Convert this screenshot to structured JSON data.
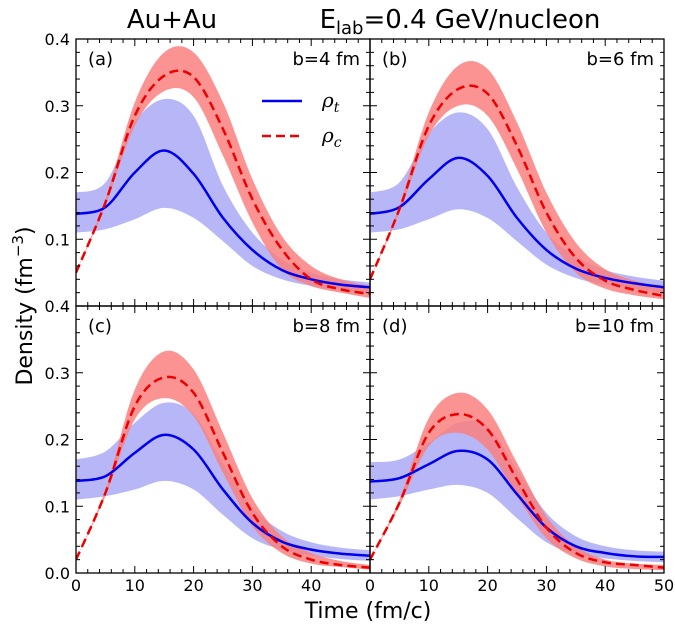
{
  "figure": {
    "title_left": "Au+Au",
    "title_right_prefix": "E",
    "title_right_sub": "lab",
    "title_right_suffix": "=0.4 GeV/nucleon",
    "xlabel": "Time (fm/c)",
    "ylabel_main": "Density (fm",
    "ylabel_sup": "−3",
    "ylabel_end": ")",
    "legend": {
      "rho_t_symbol": "ρ",
      "rho_t_sub": "t",
      "rho_c_symbol": "ρ",
      "rho_c_sub": "c"
    },
    "colors": {
      "rho_t_line": "#0000ee",
      "rho_t_band": "#b3b3f7",
      "rho_c_line": "#ee0000",
      "rho_c_band": "#fa8080"
    }
  },
  "chart_data": [
    {
      "type": "line",
      "panel": "(a)",
      "label": "b=4 fm",
      "xlabel": "Time (fm/c)",
      "ylabel": "Density (fm−3)",
      "xlim": [
        0,
        50
      ],
      "ylim": [
        0.0,
        0.4
      ],
      "x_ticks": [],
      "y_ticks": [
        "0.1",
        "0.2",
        "0.3",
        "0.4"
      ],
      "x": [
        0,
        5,
        10,
        15,
        20,
        25,
        30,
        35,
        40,
        45,
        50
      ],
      "series": [
        {
          "name": "ρt",
          "values": [
            0.138,
            0.148,
            0.2,
            0.233,
            0.198,
            0.132,
            0.084,
            0.054,
            0.04,
            0.032,
            0.028
          ],
          "band_low": [
            0.11,
            0.115,
            0.13,
            0.147,
            0.132,
            0.097,
            0.06,
            0.04,
            0.03,
            0.024,
            0.02
          ],
          "band_high": [
            0.17,
            0.185,
            0.275,
            0.31,
            0.285,
            0.18,
            0.11,
            0.07,
            0.05,
            0.04,
            0.035
          ]
        },
        {
          "name": "ρc",
          "values": [
            0.05,
            0.155,
            0.285,
            0.345,
            0.343,
            0.265,
            0.16,
            0.085,
            0.04,
            0.025,
            0.018
          ],
          "band_low": [
            0.05,
            0.15,
            0.27,
            0.322,
            0.313,
            0.225,
            0.125,
            0.055,
            0.03,
            0.02,
            0.012
          ],
          "band_high": [
            0.05,
            0.16,
            0.305,
            0.38,
            0.38,
            0.305,
            0.19,
            0.105,
            0.06,
            0.04,
            0.03
          ]
        }
      ]
    },
    {
      "type": "line",
      "panel": "(b)",
      "label": "b=6 fm",
      "xlabel": "Time (fm/c)",
      "ylabel": "",
      "xlim": [
        0,
        50
      ],
      "ylim": [
        0.0,
        0.4
      ],
      "x_ticks": [],
      "y_ticks": [],
      "x": [
        0,
        5,
        10,
        15,
        20,
        25,
        30,
        35,
        40,
        45,
        50
      ],
      "series": [
        {
          "name": "ρt",
          "values": [
            0.138,
            0.148,
            0.19,
            0.222,
            0.195,
            0.132,
            0.084,
            0.056,
            0.042,
            0.034,
            0.028
          ],
          "band_low": [
            0.11,
            0.115,
            0.13,
            0.145,
            0.132,
            0.097,
            0.062,
            0.042,
            0.032,
            0.026,
            0.02
          ],
          "band_high": [
            0.17,
            0.185,
            0.258,
            0.29,
            0.265,
            0.178,
            0.11,
            0.074,
            0.054,
            0.044,
            0.038
          ]
        },
        {
          "name": "ρc",
          "values": [
            0.04,
            0.145,
            0.27,
            0.325,
            0.318,
            0.24,
            0.14,
            0.072,
            0.038,
            0.024,
            0.015
          ],
          "band_low": [
            0.04,
            0.14,
            0.255,
            0.3,
            0.285,
            0.205,
            0.11,
            0.05,
            0.026,
            0.016,
            0.01
          ],
          "band_high": [
            0.04,
            0.15,
            0.29,
            0.36,
            0.355,
            0.275,
            0.17,
            0.095,
            0.055,
            0.038,
            0.028
          ]
        }
      ]
    },
    {
      "type": "line",
      "panel": "(c)",
      "label": "b=8 fm",
      "xlabel": "Time (fm/c)",
      "ylabel": "",
      "xlim": [
        0,
        50
      ],
      "ylim": [
        0.0,
        0.4
      ],
      "x_ticks": [
        "0",
        "10",
        "20",
        "30",
        "40"
      ],
      "y_ticks": [
        "0.0",
        "0.1",
        "0.2",
        "0.3",
        "0.4"
      ],
      "x": [
        0,
        5,
        10,
        15,
        20,
        25,
        30,
        35,
        40,
        45,
        50
      ],
      "series": [
        {
          "name": "ρt",
          "values": [
            0.138,
            0.145,
            0.18,
            0.207,
            0.185,
            0.125,
            0.075,
            0.047,
            0.035,
            0.029,
            0.026
          ],
          "band_low": [
            0.11,
            0.115,
            0.125,
            0.138,
            0.125,
            0.087,
            0.052,
            0.035,
            0.026,
            0.021,
            0.018
          ],
          "band_high": [
            0.17,
            0.182,
            0.225,
            0.255,
            0.238,
            0.165,
            0.098,
            0.063,
            0.046,
            0.038,
            0.034
          ]
        },
        {
          "name": "ρc",
          "values": [
            0.02,
            0.12,
            0.25,
            0.293,
            0.27,
            0.18,
            0.09,
            0.04,
            0.02,
            0.012,
            0.008
          ],
          "band_low": [
            0.02,
            0.115,
            0.23,
            0.262,
            0.235,
            0.15,
            0.07,
            0.03,
            0.014,
            0.009,
            0.005
          ],
          "band_high": [
            0.02,
            0.125,
            0.275,
            0.332,
            0.305,
            0.21,
            0.112,
            0.055,
            0.03,
            0.018,
            0.012
          ]
        }
      ]
    },
    {
      "type": "line",
      "panel": "(d)",
      "label": "b=10 fm",
      "xlabel": "Time (fm/c)",
      "ylabel": "",
      "xlim": [
        0,
        50
      ],
      "ylim": [
        0.0,
        0.4
      ],
      "x_ticks": [
        "0",
        "10",
        "20",
        "30",
        "40",
        "50"
      ],
      "y_ticks": [],
      "x": [
        0,
        5,
        10,
        15,
        20,
        25,
        30,
        35,
        40,
        45,
        50
      ],
      "series": [
        {
          "name": "ρt",
          "values": [
            0.137,
            0.142,
            0.163,
            0.183,
            0.17,
            0.118,
            0.068,
            0.04,
            0.03,
            0.025,
            0.024
          ],
          "band_low": [
            0.11,
            0.115,
            0.125,
            0.132,
            0.12,
            0.082,
            0.046,
            0.028,
            0.022,
            0.018,
            0.016
          ],
          "band_high": [
            0.166,
            0.17,
            0.195,
            0.225,
            0.22,
            0.155,
            0.09,
            0.055,
            0.04,
            0.034,
            0.032
          ]
        },
        {
          "name": "ρc",
          "values": [
            0.02,
            0.105,
            0.21,
            0.238,
            0.215,
            0.14,
            0.068,
            0.03,
            0.016,
            0.012,
            0.008
          ],
          "band_low": [
            0.02,
            0.1,
            0.19,
            0.21,
            0.185,
            0.115,
            0.052,
            0.022,
            0.01,
            0.006,
            0.004
          ],
          "band_high": [
            0.02,
            0.11,
            0.232,
            0.27,
            0.245,
            0.165,
            0.085,
            0.04,
            0.02,
            0.014,
            0.012
          ]
        }
      ]
    }
  ]
}
